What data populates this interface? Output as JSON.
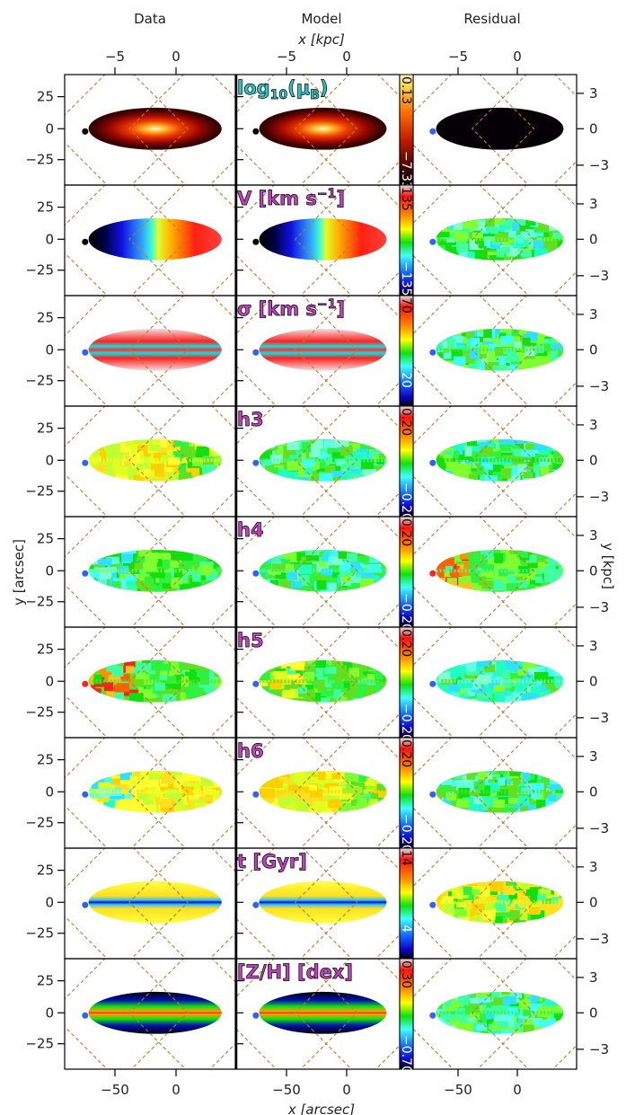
{
  "figure": {
    "column_titles": [
      "Data",
      "Model",
      "Residual"
    ],
    "top_axis_label": "x [kpc]",
    "bottom_axis_label": "x [arcsec]",
    "left_axis_label": "y [arcsec]",
    "right_axis_label": "y [kpc]",
    "top_kpc_ticks": [
      "−5",
      "0"
    ],
    "bottom_arcsec_ticks": [
      "−50",
      "0"
    ],
    "left_arcsec_ticks": [
      "25",
      "0",
      "−25"
    ],
    "right_kpc_ticks": [
      "3",
      "0",
      "−3"
    ]
  },
  "chart_data": {
    "type": "heatmap",
    "description_of_axes": {
      "x": {
        "unit": "arcsec",
        "ticks": [
          -50,
          0
        ],
        "kpc_ticks": [
          -5,
          0
        ]
      },
      "y": {
        "unit": "arcsec",
        "ticks": [
          25,
          0,
          -25
        ],
        "kpc_ticks": [
          3,
          0,
          -3
        ]
      }
    },
    "columns": [
      "Data",
      "Model",
      "Residual"
    ],
    "rows": [
      {
        "label_main": "log",
        "label_sub": "10",
        "label_tail": "(μ",
        "label_tail_sub": "B",
        "label_end": ")",
        "label_color": "#26c6c6",
        "cbar_max": "0.13",
        "cbar_min": "−7.33",
        "cmap": "heat",
        "pattern": {
          "data": "bright-core",
          "model": "bright-core",
          "residual": "dark"
        }
      },
      {
        "label_main": "V [km s",
        "label_sup": "−1",
        "label_end": "]",
        "label_color": "#c040c0",
        "cbar_max": "135",
        "cbar_min": "−135",
        "cmap": "rainbow",
        "pattern": {
          "data": "rotation",
          "model": "rotation",
          "residual": "flat-green"
        }
      },
      {
        "label_main": "σ [km s",
        "label_sup": "−1",
        "label_end": "]",
        "label_color": "#c040c0",
        "cbar_max": "70",
        "cbar_min": "20",
        "cmap": "rainbow",
        "pattern": {
          "data": "dispersion",
          "model": "dispersion",
          "residual": "noisy-green"
        }
      },
      {
        "label_main": "h3",
        "label_color": "#c040c0",
        "cbar_max": "0.20",
        "cbar_min": "−0.20",
        "cmap": "rainbow",
        "pattern": {
          "data": "h-yellow-green",
          "model": "h-green-band",
          "residual": "noisy-green"
        }
      },
      {
        "label_main": "h4",
        "label_color": "#c040c0",
        "cbar_max": "0.20",
        "cbar_min": "−0.20",
        "cmap": "rainbow",
        "pattern": {
          "data": "h-cyan",
          "model": "h-green-band",
          "residual": "noisy-red-left"
        }
      },
      {
        "label_main": "h5",
        "label_color": "#c040c0",
        "cbar_max": "0.20",
        "cbar_min": "−0.20",
        "cmap": "rainbow",
        "pattern": {
          "data": "h-red-left",
          "model": "h-yellow-left",
          "residual": "noisy-cyan"
        }
      },
      {
        "label_main": "h6",
        "label_color": "#c040c0",
        "cbar_max": "0.20",
        "cbar_min": "−0.20",
        "cmap": "rainbow",
        "pattern": {
          "data": "h-cyan-yellow",
          "model": "h-yellow-green",
          "residual": "noisy-green"
        }
      },
      {
        "label_main": "t [Gyr]",
        "label_color": "#c040c0",
        "cbar_max": "14",
        "cbar_min": "4",
        "cmap": "rainbow",
        "pattern": {
          "data": "age-thin-blue",
          "model": "age-thin-blue",
          "residual": "noisy-yellow"
        }
      },
      {
        "label_main": "[Z/H] [dex]",
        "label_color": "#c040c0",
        "cbar_max": "0.30",
        "cbar_min": "−0.70",
        "cmap": "rainbow",
        "pattern": {
          "data": "metal",
          "model": "metal",
          "residual": "noisy-green"
        }
      }
    ]
  }
}
